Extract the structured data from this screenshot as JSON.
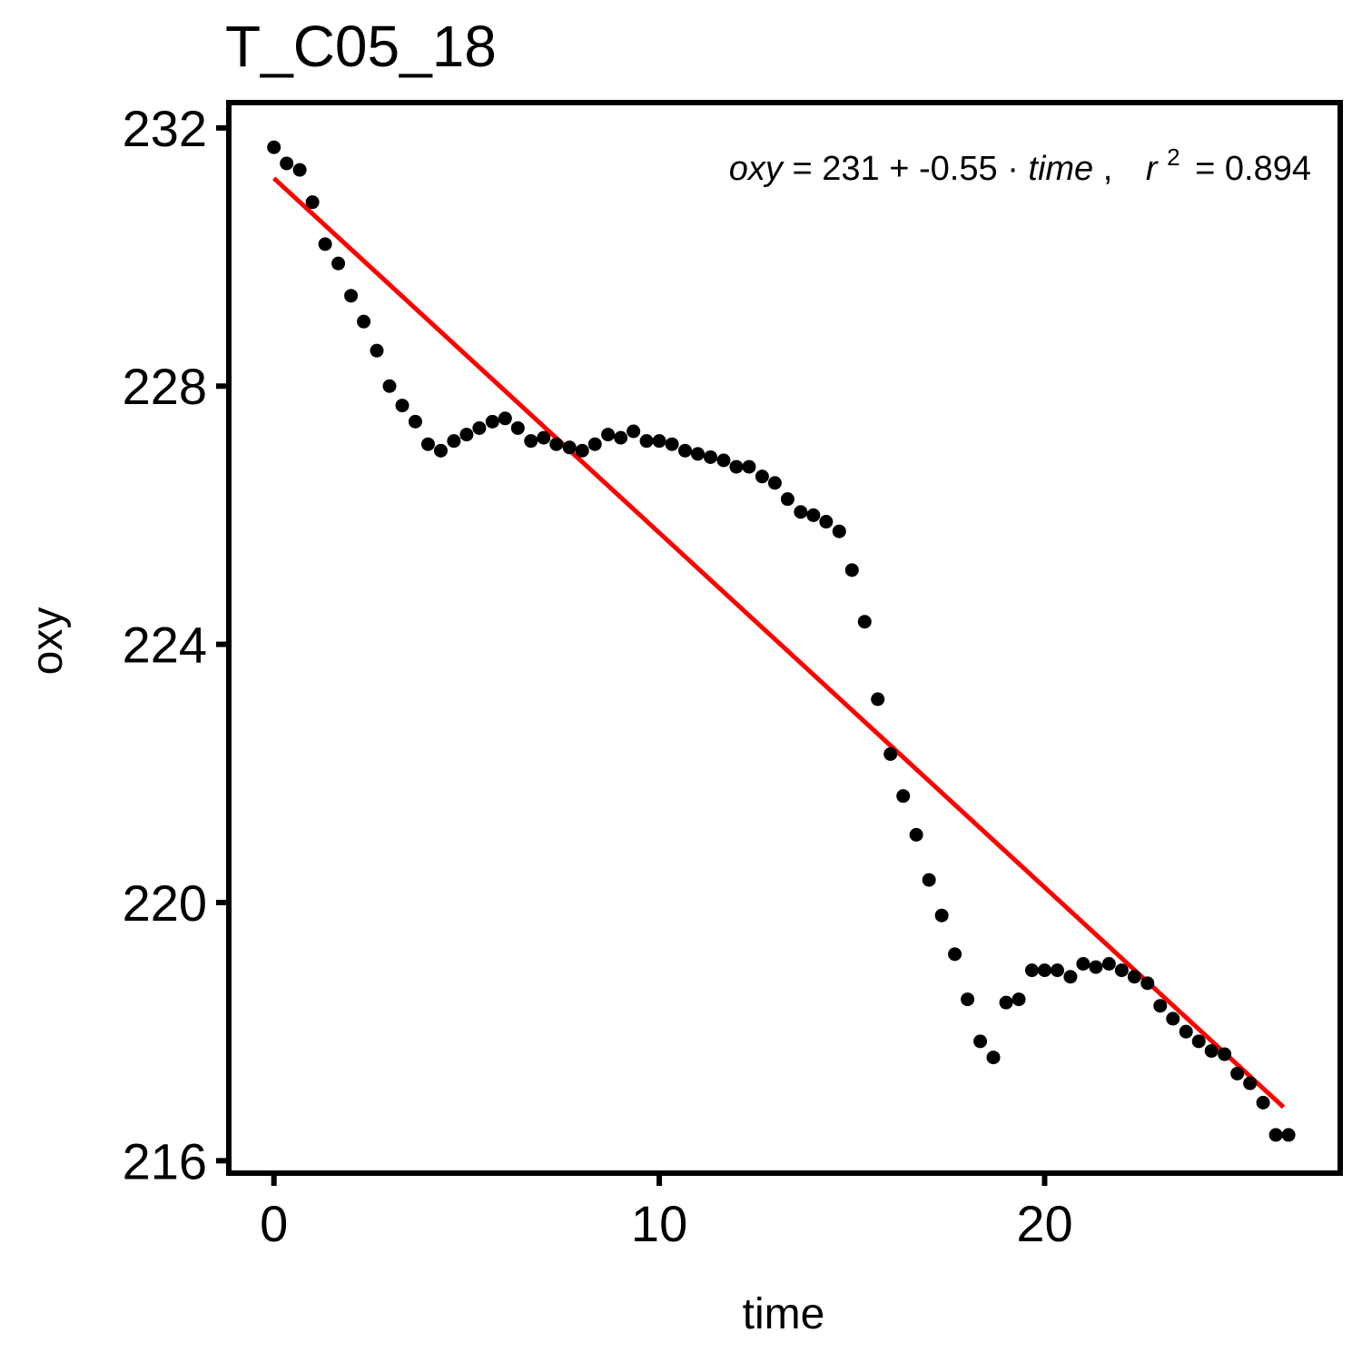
{
  "chart_data": {
    "type": "scatter",
    "title": "T_C05_18",
    "xlabel": "time",
    "ylabel": "oxy",
    "xlim": [
      -1.1,
      27.6
    ],
    "ylim": [
      215.85,
      232.35
    ],
    "x_ticks": [
      0,
      10,
      20
    ],
    "x_tick_labels": [
      "0",
      "10",
      "20"
    ],
    "y_ticks": [
      216,
      220,
      224,
      228,
      232
    ],
    "y_tick_labels": [
      "216",
      "220",
      "224",
      "228",
      "232"
    ],
    "grid": false,
    "legend": "none",
    "point_color": "#000000",
    "fit_color": "#ff0000",
    "annotation": {
      "position": "top-right",
      "lhs": "oxy",
      "eq_sign": "=",
      "intercept": "231",
      "plus": "+",
      "slope": "-0.55",
      "dot": "·",
      "var": "time",
      "comma": ",",
      "r2_label": "r",
      "r2_sup": "2",
      "r2_eq": "=",
      "r2_value": "0.894"
    },
    "fit": {
      "x": [
        0.0,
        26.2
      ],
      "y": [
        231.22,
        216.83
      ]
    },
    "points": {
      "x": [
        0.0,
        0.33,
        0.67,
        1.0,
        1.33,
        1.67,
        2.0,
        2.33,
        2.67,
        3.0,
        3.33,
        3.67,
        4.0,
        4.33,
        4.67,
        5.0,
        5.33,
        5.67,
        6.0,
        6.33,
        6.67,
        7.0,
        7.33,
        7.67,
        8.0,
        8.33,
        8.67,
        9.0,
        9.33,
        9.67,
        10.0,
        10.33,
        10.67,
        11.0,
        11.33,
        11.67,
        12.0,
        12.33,
        12.67,
        13.0,
        13.33,
        13.67,
        14.0,
        14.33,
        14.67,
        15.0,
        15.33,
        15.67,
        16.0,
        16.33,
        16.67,
        17.0,
        17.33,
        17.67,
        18.0,
        18.33,
        18.67,
        19.0,
        19.33,
        19.67,
        20.0,
        20.33,
        20.67,
        21.0,
        21.33,
        21.67,
        22.0,
        22.33,
        22.67,
        23.0,
        23.33,
        23.67,
        24.0,
        24.33,
        24.67,
        25.0,
        25.33,
        25.67,
        26.0,
        26.33
      ],
      "y": [
        231.7,
        231.45,
        231.35,
        230.85,
        230.2,
        229.9,
        229.4,
        229.0,
        228.55,
        228.0,
        227.7,
        227.45,
        227.1,
        227.0,
        227.15,
        227.25,
        227.35,
        227.45,
        227.5,
        227.35,
        227.15,
        227.2,
        227.1,
        227.05,
        227.0,
        227.1,
        227.25,
        227.2,
        227.3,
        227.15,
        227.15,
        227.1,
        227.0,
        226.95,
        226.9,
        226.85,
        226.75,
        226.75,
        226.6,
        226.5,
        226.25,
        226.05,
        226.0,
        225.9,
        225.75,
        225.15,
        224.35,
        223.15,
        222.3,
        221.65,
        221.05,
        220.35,
        219.8,
        219.2,
        218.5,
        217.85,
        217.6,
        218.45,
        218.5,
        218.95,
        218.95,
        218.95,
        218.85,
        219.05,
        219.0,
        219.05,
        218.95,
        218.85,
        218.75,
        218.4,
        218.2,
        218.0,
        217.85,
        217.7,
        217.65,
        217.35,
        217.2,
        216.9,
        216.4,
        216.4
      ]
    }
  }
}
